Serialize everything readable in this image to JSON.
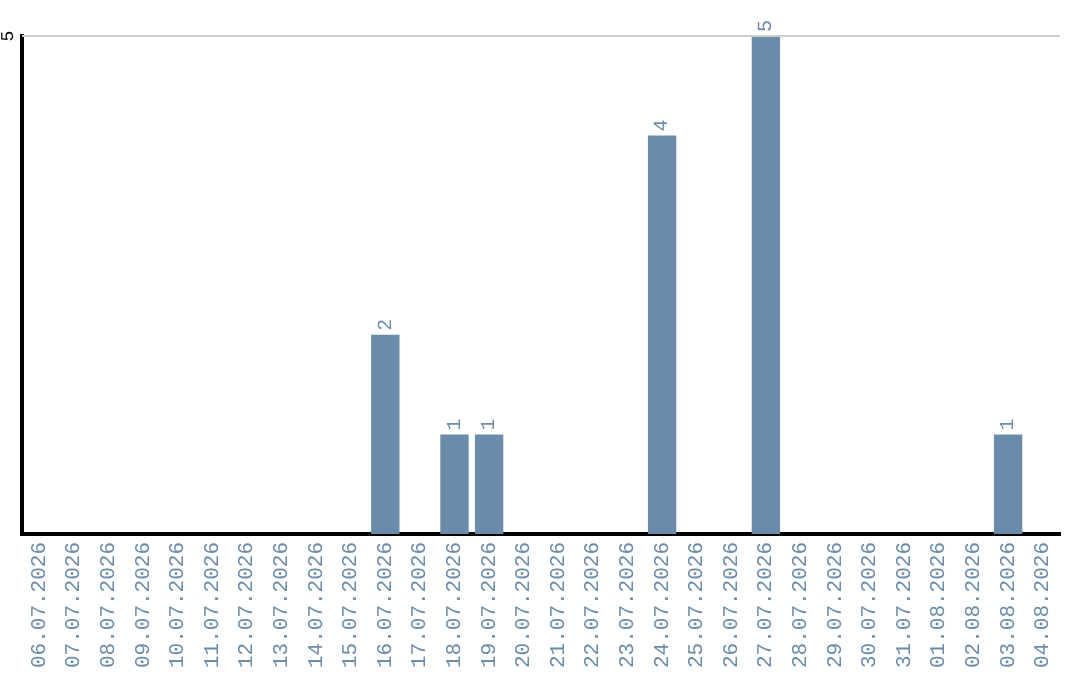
{
  "chart_data": {
    "type": "bar",
    "categories": [
      "06.07.2026",
      "07.07.2026",
      "08.07.2026",
      "09.07.2026",
      "10.07.2026",
      "11.07.2026",
      "12.07.2026",
      "13.07.2026",
      "14.07.2026",
      "15.07.2026",
      "16.07.2026",
      "17.07.2026",
      "18.07.2026",
      "19.07.2026",
      "20.07.2026",
      "21.07.2026",
      "22.07.2026",
      "23.07.2026",
      "24.07.2026",
      "25.07.2026",
      "26.07.2026",
      "27.07.2026",
      "28.07.2026",
      "29.07.2026",
      "30.07.2026",
      "31.07.2026",
      "01.08.2026",
      "02.08.2026",
      "03.08.2026",
      "04.08.2026"
    ],
    "values": [
      0,
      0,
      0,
      0,
      0,
      0,
      0,
      0,
      0,
      0,
      2,
      0,
      1,
      1,
      0,
      0,
      0,
      0,
      4,
      0,
      0,
      5,
      0,
      0,
      0,
      0,
      0,
      0,
      1,
      0
    ],
    "value_labels": [
      null,
      null,
      null,
      null,
      null,
      null,
      null,
      null,
      null,
      null,
      "2",
      null,
      "1",
      "1",
      null,
      null,
      null,
      null,
      "4",
      null,
      null,
      "5",
      null,
      null,
      null,
      null,
      null,
      null,
      "1",
      null
    ],
    "color": "#6a8caa",
    "ylim": [
      0,
      5
    ],
    "yticks": [
      5
    ],
    "ref_lines": [
      {
        "axis": "y",
        "value": 5,
        "color": "#cccccc"
      }
    ],
    "legend": false
  }
}
